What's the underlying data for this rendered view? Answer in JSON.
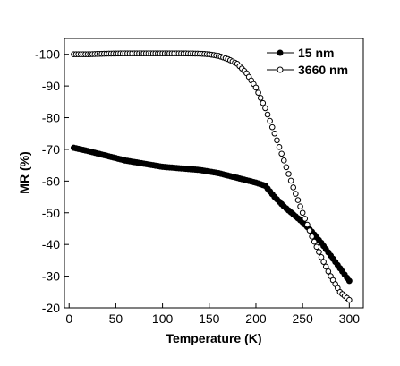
{
  "chart_data": {
    "type": "scatter",
    "title": "",
    "xlabel": "Temperature (K)",
    "ylabel": "MR (%)",
    "xlim": [
      -5,
      315
    ],
    "ylim": [
      -20,
      -105
    ],
    "x_ticks": [
      0,
      50,
      100,
      150,
      200,
      250,
      300
    ],
    "x_tick_labels": [
      "0",
      "50",
      "100",
      "150",
      "200",
      "250",
      "300"
    ],
    "y_ticks": [
      -20,
      -30,
      -40,
      -50,
      -60,
      -70,
      -80,
      -90,
      -100
    ],
    "y_tick_labels": [
      "-20",
      "-30",
      "-40",
      "-50",
      "-60",
      "-70",
      "-80",
      "-90",
      "-100"
    ],
    "grid": false,
    "legend_position": "top-right",
    "series": [
      {
        "name": "15 nm",
        "marker": "filled-circle",
        "color": "#000000",
        "x": [
          5,
          20,
          40,
          60,
          80,
          100,
          120,
          140,
          160,
          180,
          200,
          210,
          220,
          230,
          240,
          250,
          260,
          270,
          280,
          290,
          300
        ],
        "y": [
          -70.5,
          -69.5,
          -68,
          -66.5,
          -65.5,
          -64.5,
          -64,
          -63.5,
          -62.5,
          -61,
          -59.5,
          -58.5,
          -55,
          -52,
          -49.5,
          -47,
          -44,
          -40.5,
          -36.5,
          -32.5,
          -28.5
        ]
      },
      {
        "name": "3660 nm",
        "marker": "open-circle",
        "color": "#000000",
        "x": [
          5,
          20,
          40,
          60,
          80,
          100,
          120,
          140,
          150,
          160,
          170,
          180,
          190,
          200,
          210,
          220,
          230,
          240,
          250,
          260,
          270,
          280,
          290,
          300
        ],
        "y": [
          -100,
          -100,
          -100.2,
          -100.3,
          -100.3,
          -100.3,
          -100.3,
          -100.2,
          -100,
          -99.5,
          -98.5,
          -97,
          -94,
          -89.5,
          -83,
          -75,
          -66.5,
          -58,
          -50,
          -42.5,
          -36,
          -30,
          -25,
          -22.5
        ]
      }
    ]
  }
}
